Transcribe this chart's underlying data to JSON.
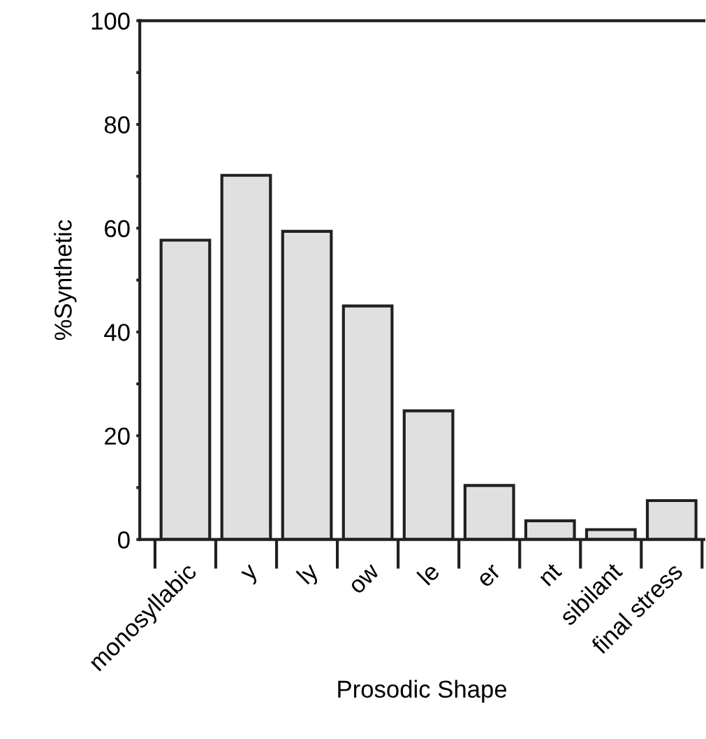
{
  "chart_data": {
    "type": "bar",
    "xlabel": "Prosodic Shape",
    "ylabel": "%Synthetic",
    "categories": [
      "monosyllabic",
      "y",
      "ly",
      "ow",
      "le",
      "er",
      "nt",
      "sibilant",
      "final stress"
    ],
    "values": [
      57.7,
      70.2,
      59.4,
      45.0,
      24.8,
      10.4,
      3.6,
      1.9,
      7.5
    ],
    "color": "#e0e0e0",
    "ylim": [
      0,
      100
    ],
    "yticks": [
      0,
      {
        "value": 10,
        "label": null
      },
      20,
      {
        "value": 30,
        "label": null
      },
      40,
      {
        "value": 50,
        "label": null
      },
      60,
      {
        "value": 70,
        "label": null
      },
      80,
      {
        "value": 90,
        "label": null
      },
      100
    ],
    "grid": false,
    "legend": false
  }
}
